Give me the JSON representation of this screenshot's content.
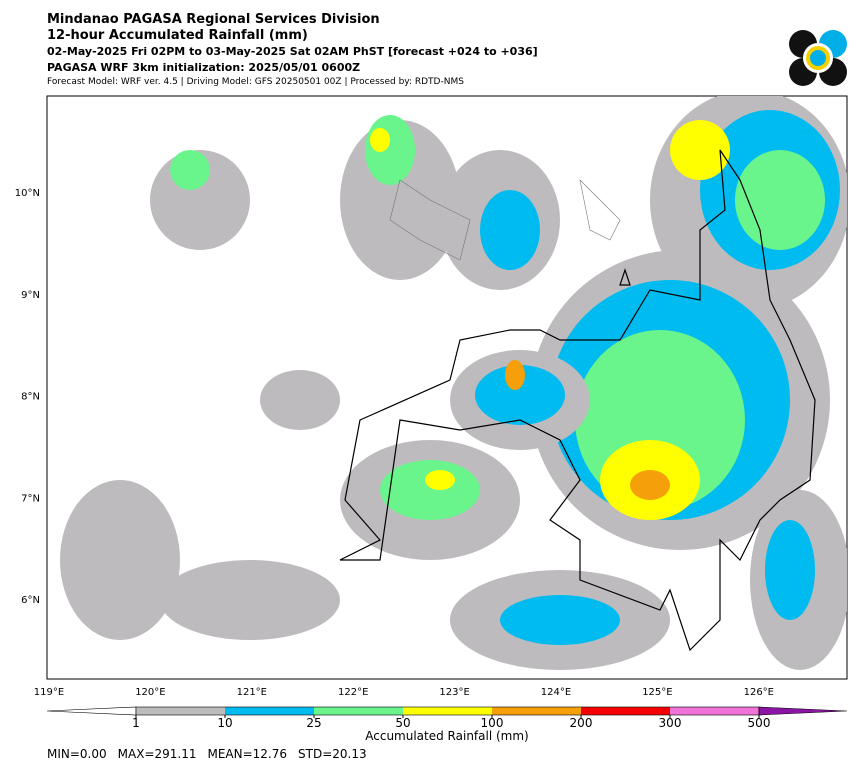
{
  "header": {
    "agency": "Mindanao PAGASA Regional Services Division",
    "title": "12-hour Accumulated Rainfall (mm)",
    "period": "02-May-2025 Fri 02PM to 03-May-2025 Sat 02AM PhST [forecast +024 to +036]",
    "initialization": "PAGASA WRF 3km initialization: 2025/05/01 0600Z",
    "model_info": "Forecast Model: WRF ver. 4.5 | Driving Model: GFS 20250501 00Z | Processed by: RDTD-NMS"
  },
  "map": {
    "lon_ticks": [
      {
        "value": 119,
        "label": "119°E"
      },
      {
        "value": 120,
        "label": "120°E"
      },
      {
        "value": 121,
        "label": "121°E"
      },
      {
        "value": 122,
        "label": "122°E"
      },
      {
        "value": 123,
        "label": "123°E"
      },
      {
        "value": 124,
        "label": "124°E"
      },
      {
        "value": 125,
        "label": "125°E"
      },
      {
        "value": 126,
        "label": "126°E"
      }
    ],
    "lat_ticks": [
      {
        "value": 10,
        "label": "10°N"
      },
      {
        "value": 9,
        "label": "9°N"
      },
      {
        "value": 8,
        "label": "8°N"
      },
      {
        "value": 7,
        "label": "7°N"
      },
      {
        "value": 6,
        "label": "6°N"
      }
    ]
  },
  "colorbar": {
    "label": "Accumulated Rainfall (mm)",
    "levels": [
      1,
      10,
      25,
      50,
      100,
      200,
      300,
      500
    ],
    "colors": [
      "#ffffff",
      "#bdbbbd",
      "#00bbf0",
      "#6af58c",
      "#ffff00",
      "#f5a00a",
      "#f50000",
      "#f073d7",
      "#8c14a5"
    ]
  },
  "stats": [
    "MIN=0.00",
    "MAX=291.11",
    "MEAN=12.76",
    "STD=20.13"
  ]
}
